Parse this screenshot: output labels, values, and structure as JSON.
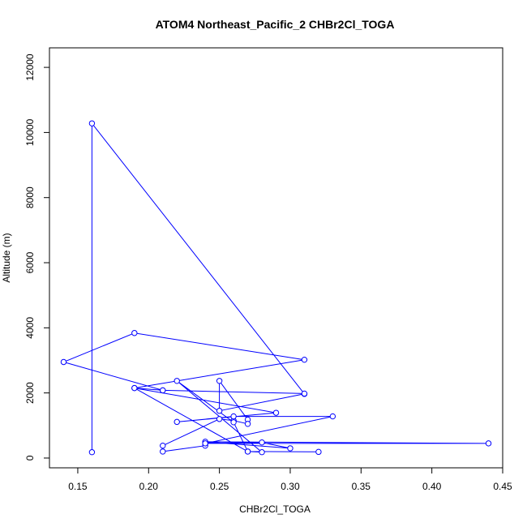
{
  "chart_data": {
    "type": "line",
    "title": "ATOM4 Northeast_Pacific_2 CHBr2Cl_TOGA",
    "xlabel": "CHBr2Cl_TOGA",
    "ylabel": "Altitude (m)",
    "xlim": [
      0.13,
      0.45
    ],
    "ylim": [
      -300,
      12600
    ],
    "x_ticks": [
      0.15,
      0.2,
      0.25,
      0.3,
      0.35,
      0.4,
      0.45
    ],
    "x_tick_labels": [
      "0.15",
      "0.20",
      "0.25",
      "0.30",
      "0.35",
      "0.40",
      "0.45"
    ],
    "y_ticks": [
      0,
      2000,
      4000,
      6000,
      8000,
      10000,
      12000
    ],
    "y_tick_labels": [
      "0",
      "2000",
      "4000",
      "6000",
      "8000",
      "10000",
      "12000"
    ],
    "grid": false,
    "series": [
      {
        "color": "#0000ff",
        "marker": "open-circle",
        "x": [
          0.16,
          0.16,
          0.31,
          0.25,
          0.25,
          0.27,
          0.27,
          0.26,
          0.25,
          0.21,
          0.21,
          0.24,
          0.24,
          0.28,
          0.3,
          0.24,
          0.44,
          0.24,
          0.33,
          0.26,
          0.22,
          0.29,
          0.19,
          0.31,
          0.19,
          0.14,
          0.21,
          0.31,
          0.21,
          0.19,
          0.27,
          0.26,
          0.22,
          0.28,
          0.27,
          0.32
        ],
        "y": [
          180,
          10280,
          1970,
          1450,
          2370,
          1180,
          1050,
          1150,
          1200,
          380,
          200,
          380,
          460,
          480,
          300,
          500,
          450,
          450,
          1280,
          1280,
          1110,
          1390,
          2150,
          3020,
          3840,
          2950,
          2080,
          1980,
          2080,
          2150,
          200,
          1100,
          2370,
          180,
          200,
          190
        ]
      }
    ]
  }
}
